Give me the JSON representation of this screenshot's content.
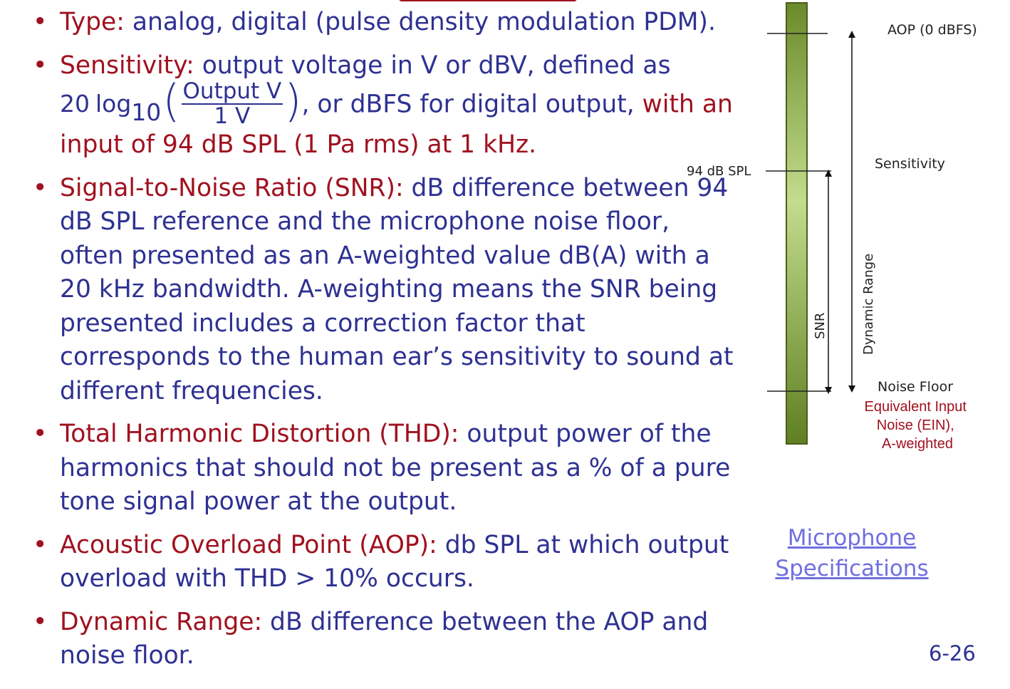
{
  "bullets": [
    {
      "term": "Type:",
      "text": " analog, digital (pulse density modulation PDM)."
    },
    {
      "term": "Sensitivity:",
      "text_a": " output voltage in V or dBV, defined as",
      "formula": {
        "coef": "20",
        "log": "log",
        "sub": "10",
        "numerator": "Output V",
        "denominator": "1 V"
      },
      "text_b": ", or dBFS for digital output, ",
      "red_tail": "with an input of 94 dB SPL (1 Pa rms) at 1 kHz."
    },
    {
      "term": "Signal-to-Noise Ratio (SNR):",
      "text": " dB difference between 94 dB SPL reference and the microphone noise floor, often presented as an A-weighted value dB(A) with a 20 kHz bandwidth. A-weighting means the SNR being presented includes a correction factor that corresponds to the human ear’s sensitivity to sound at different frequencies."
    },
    {
      "term": "Total Harmonic Distortion (THD):",
      "text": " output power of the harmonics that should not be present as a % of a pure tone signal power at the output."
    },
    {
      "term": "Acoustic Overload Point (AOP):",
      "text": " db SPL at which output overload with THD > 10% occurs."
    },
    {
      "term": "Dynamic Range:",
      "text": " dB difference between the AOP and noise floor."
    }
  ],
  "diagram": {
    "aop": "AOP (0 dBFS)",
    "spl_94": "94 dB SPL",
    "sensitivity": "Sensitivity",
    "snr": "SNR",
    "dynamic_range": "Dynamic Range",
    "noise_floor": "Noise Floor",
    "ein": [
      "Equivalent Input",
      "Noise (EIN),",
      "A-weighted"
    ]
  },
  "link": [
    "Microphone",
    "Specifications"
  ],
  "page_number": "6-26",
  "colors": {
    "term": "#a0111f",
    "body": "#2e3192",
    "link": "#7070e0",
    "bar_top": "#6b8a2a",
    "bar_mid": "#c3dc8e",
    "bar_bottom": "#5f7f22"
  }
}
